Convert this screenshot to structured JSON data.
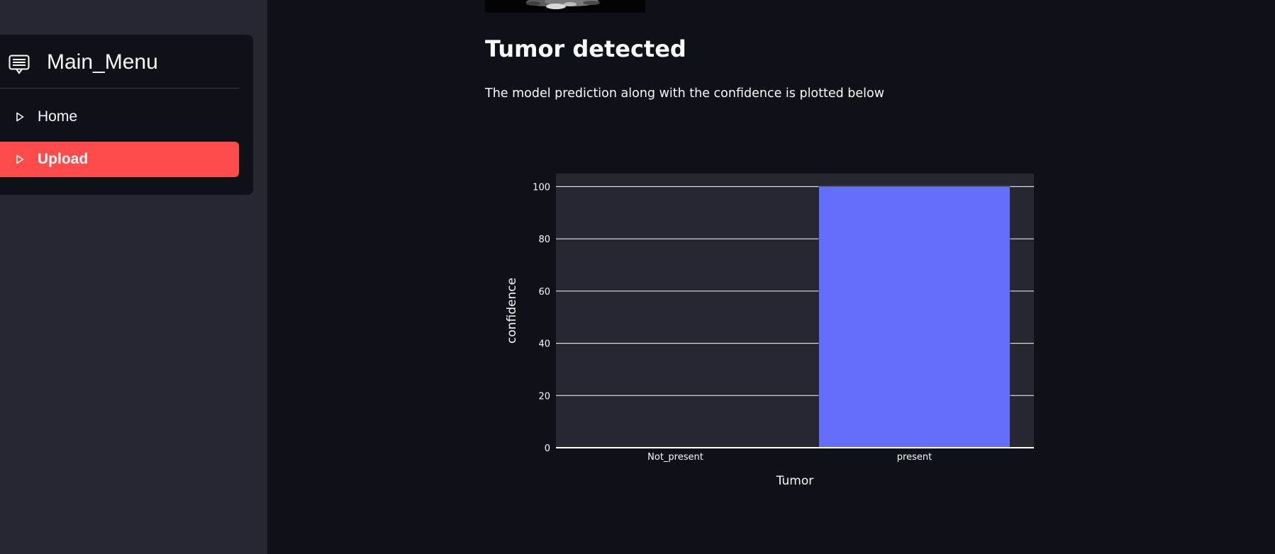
{
  "sidebar": {
    "menu": {
      "title": "Main_Menu",
      "icon": "menu-list-icon",
      "items": [
        {
          "label": "Home",
          "icon": "play-outline-icon",
          "active": false
        },
        {
          "label": "Upload",
          "icon": "play-outline-icon",
          "active": true
        }
      ]
    }
  },
  "main": {
    "heading": "Tumor detected",
    "description": "The model prediction along with the confidence is plotted below"
  },
  "colors": {
    "background": "#0e1117",
    "sidebar": "#262730",
    "accent": "#ff4b4b",
    "bar": "#636efa",
    "plot_bg": "#262730"
  },
  "chart_data": {
    "type": "bar",
    "categories": [
      "Not_present",
      "present"
    ],
    "values": [
      0,
      100
    ],
    "xlabel": "Tumor",
    "ylabel": "confidence",
    "ylim": [
      0,
      105
    ],
    "yticks": [
      0,
      20,
      40,
      60,
      80,
      100
    ],
    "grid": true,
    "bar_color": "#636efa"
  }
}
